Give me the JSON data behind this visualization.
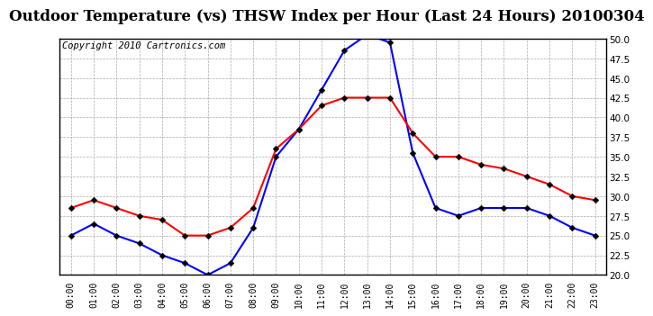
{
  "title": "Outdoor Temperature (vs) THSW Index per Hour (Last 24 Hours) 20100304",
  "copyright": "Copyright 2010 Cartronics.com",
  "hours": [
    "00:00",
    "01:00",
    "02:00",
    "03:00",
    "04:00",
    "05:00",
    "06:00",
    "07:00",
    "08:00",
    "09:00",
    "10:00",
    "11:00",
    "12:00",
    "13:00",
    "14:00",
    "15:00",
    "16:00",
    "17:00",
    "18:00",
    "19:00",
    "20:00",
    "21:00",
    "22:00",
    "23:00"
  ],
  "blue_thsw": [
    25.0,
    26.5,
    25.0,
    24.0,
    22.5,
    21.5,
    20.0,
    21.5,
    26.0,
    35.0,
    38.5,
    43.5,
    48.5,
    50.5,
    49.5,
    35.5,
    28.5,
    27.5,
    28.5,
    28.5,
    28.5,
    27.5,
    26.0,
    25.0
  ],
  "red_temp": [
    28.5,
    29.5,
    28.5,
    27.5,
    27.0,
    25.0,
    25.0,
    26.0,
    28.5,
    36.0,
    38.5,
    41.5,
    42.5,
    42.5,
    42.5,
    38.0,
    35.0,
    35.0,
    34.0,
    33.5,
    32.5,
    31.5,
    30.0,
    29.5
  ],
  "ylim": [
    20.0,
    50.0
  ],
  "yticks": [
    20.0,
    22.5,
    25.0,
    27.5,
    30.0,
    32.5,
    35.0,
    37.5,
    40.0,
    42.5,
    45.0,
    47.5,
    50.0
  ],
  "blue_color": "#0000ff",
  "red_color": "#ff0000",
  "bg_color": "#ffffff",
  "grid_color": "#aaaaaa",
  "title_fontsize": 12,
  "copyright_fontsize": 7.5
}
